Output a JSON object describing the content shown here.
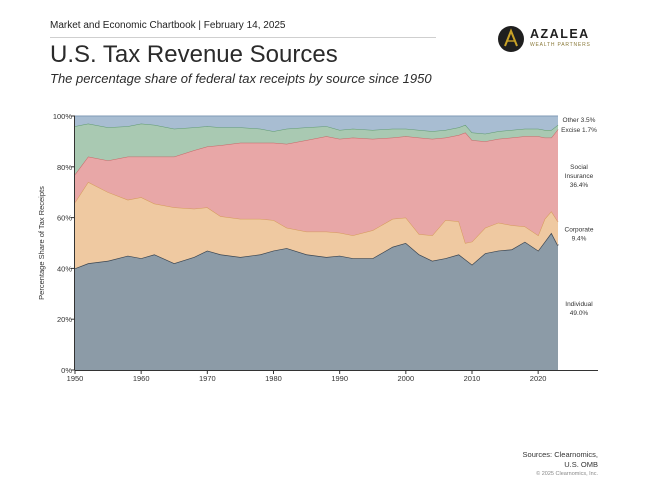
{
  "header": {
    "chartbook": "Market and Economic Chartbook | February 14, 2025",
    "title": "U.S. Tax Revenue Sources",
    "subtitle": "The percentage share of federal tax receipts by source since 1950"
  },
  "logo": {
    "name": "AZALEA",
    "tagline": "WEALTH PARTNERS",
    "gold": "#c9a227"
  },
  "footer": {
    "sources_line1": "Sources: Clearnomics,",
    "sources_line2": "U.S. OMB",
    "copyright": "© 2025 Clearnomics, Inc."
  },
  "chart_data": {
    "type": "area",
    "stacked": true,
    "ylabel": "Percentage Share of Tax Receipts",
    "xlim": [
      1950,
      2025
    ],
    "ylim": [
      0,
      100
    ],
    "x_ticks": [
      "1950",
      "1960",
      "1970",
      "1980",
      "1990",
      "2000",
      "2010",
      "2020"
    ],
    "y_ticks": [
      "0%",
      "20%",
      "40%",
      "60%",
      "80%",
      "100%"
    ],
    "grid": false,
    "x": [
      1950,
      1952,
      1955,
      1958,
      1960,
      1962,
      1965,
      1968,
      1970,
      1972,
      1975,
      1978,
      1980,
      1982,
      1985,
      1988,
      1990,
      1992,
      1995,
      1998,
      2000,
      2002,
      2004,
      2006,
      2008,
      2009,
      2010,
      2012,
      2014,
      2016,
      2018,
      2020,
      2021,
      2022,
      2023
    ],
    "series": [
      {
        "name": "Individual",
        "color": "#8c9ba7",
        "values": [
          40,
          42,
          43,
          45,
          44,
          45.5,
          42,
          44.5,
          47,
          45.5,
          44.5,
          45.5,
          47,
          48,
          45.5,
          44.5,
          45,
          44,
          44,
          48.5,
          50,
          45.5,
          43,
          44,
          45.5,
          43.5,
          41.5,
          46,
          47,
          47.5,
          50.5,
          47,
          50.5,
          54,
          49
        ]
      },
      {
        "name": "Corporate",
        "color": "#efc9a1",
        "values": [
          26,
          32,
          27,
          22,
          24,
          20,
          22,
          19,
          17,
          15,
          15,
          14,
          12,
          8,
          9,
          10,
          9,
          9,
          11,
          11,
          10,
          8,
          10,
          15,
          13,
          6.5,
          9,
          10,
          11,
          9.5,
          6,
          6,
          9,
          8.5,
          9.4
        ]
      },
      {
        "name": "Social Insurance",
        "color": "#e8a7a7",
        "values": [
          11,
          10,
          12.5,
          17,
          16,
          18.5,
          20,
          23,
          24,
          28,
          30,
          30,
          30.5,
          33,
          36,
          37.5,
          37,
          38.5,
          36,
          32,
          32,
          38,
          38,
          32.5,
          34,
          43.5,
          40,
          34,
          33,
          34.5,
          35.5,
          39,
          32,
          29,
          36.4
        ]
      },
      {
        "name": "Excise",
        "color": "#a9c9b2",
        "values": [
          19,
          13,
          13,
          12,
          13,
          12.5,
          11,
          9,
          8,
          7,
          6,
          5.5,
          4.5,
          6,
          5,
          4,
          3.5,
          3.5,
          3.5,
          3.5,
          3,
          3,
          3,
          3,
          3,
          3,
          3,
          3,
          3,
          3,
          3,
          3,
          3,
          3,
          1.7
        ]
      },
      {
        "name": "Other",
        "color": "#a8bdd2",
        "values": [
          4,
          3,
          4.5,
          4,
          3,
          3.5,
          5,
          4.5,
          4,
          4.5,
          4.5,
          5,
          6,
          5,
          4.5,
          4,
          5.5,
          5,
          5.5,
          5,
          5,
          5.5,
          6,
          5.5,
          4.5,
          3.5,
          6.5,
          7,
          6,
          5.5,
          5,
          5,
          5.5,
          5.5,
          3.5
        ]
      }
    ],
    "labels": [
      {
        "series": "Other",
        "lines": [
          "Other 3.5%"
        ]
      },
      {
        "series": "Excise",
        "lines": [
          "Excise 1.7%"
        ]
      },
      {
        "series": "Social Insurance",
        "lines": [
          "Social",
          "Insurance",
          "36.4%"
        ]
      },
      {
        "series": "Corporate",
        "lines": [
          "Corporate",
          "9.4%"
        ]
      },
      {
        "series": "Individual",
        "lines": [
          "Individual",
          "49.0%"
        ]
      }
    ]
  }
}
